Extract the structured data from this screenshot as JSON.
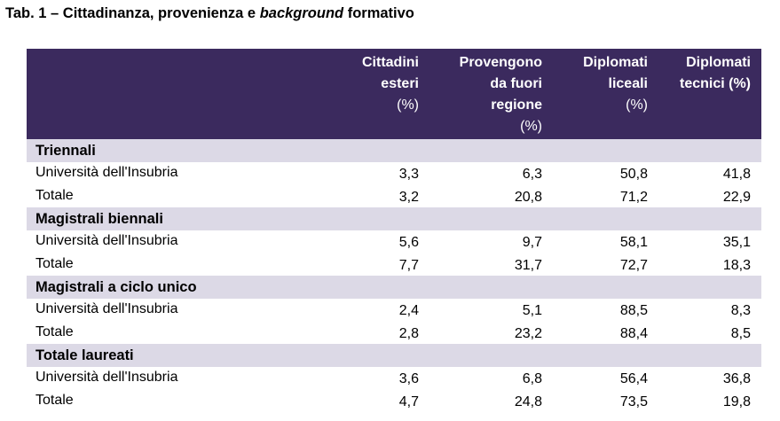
{
  "title": {
    "prefix": "Tab. 1 – Cittadinanza, provenienza e ",
    "emphasis": "background",
    "suffix": " formativo"
  },
  "columns": [
    {
      "lines": [
        "Cittadini",
        "esteri",
        "(%)"
      ]
    },
    {
      "lines": [
        "Provengono",
        "da fuori",
        "regione",
        "(%)"
      ]
    },
    {
      "lines": [
        "Diplomati",
        "liceali",
        "(%)"
      ]
    },
    {
      "lines": [
        "Diplomati",
        "tecnici (%)"
      ]
    }
  ],
  "sections": [
    {
      "name": "Triennali",
      "rows": [
        {
          "label": "Università dell'Insubria",
          "values": [
            "3,3",
            "6,3",
            "50,8",
            "41,8"
          ]
        },
        {
          "label": "Totale",
          "values": [
            "3,2",
            "20,8",
            "71,2",
            "22,9"
          ]
        }
      ]
    },
    {
      "name": "Magistrali biennali",
      "rows": [
        {
          "label": "Università dell'Insubria",
          "values": [
            "5,6",
            "9,7",
            "58,1",
            "35,1"
          ]
        },
        {
          "label": "Totale",
          "values": [
            "7,7",
            "31,7",
            "72,7",
            "18,3"
          ]
        }
      ]
    },
    {
      "name": "Magistrali a ciclo unico",
      "rows": [
        {
          "label": "Università dell'Insubria",
          "values": [
            "2,4",
            "5,1",
            "88,5",
            "8,3"
          ]
        },
        {
          "label": "Totale",
          "values": [
            "2,8",
            "23,2",
            "88,4",
            "8,5"
          ]
        }
      ]
    },
    {
      "name": "Totale laureati",
      "rows": [
        {
          "label": "Università dell'Insubria",
          "values": [
            "3,6",
            "6,8",
            "56,4",
            "36,8"
          ]
        },
        {
          "label": "Totale",
          "values": [
            "4,7",
            "24,8",
            "73,5",
            "19,8"
          ]
        }
      ]
    }
  ],
  "colors": {
    "header_bg": "#3b2a5e",
    "section_bg": "#dcd9e6"
  }
}
